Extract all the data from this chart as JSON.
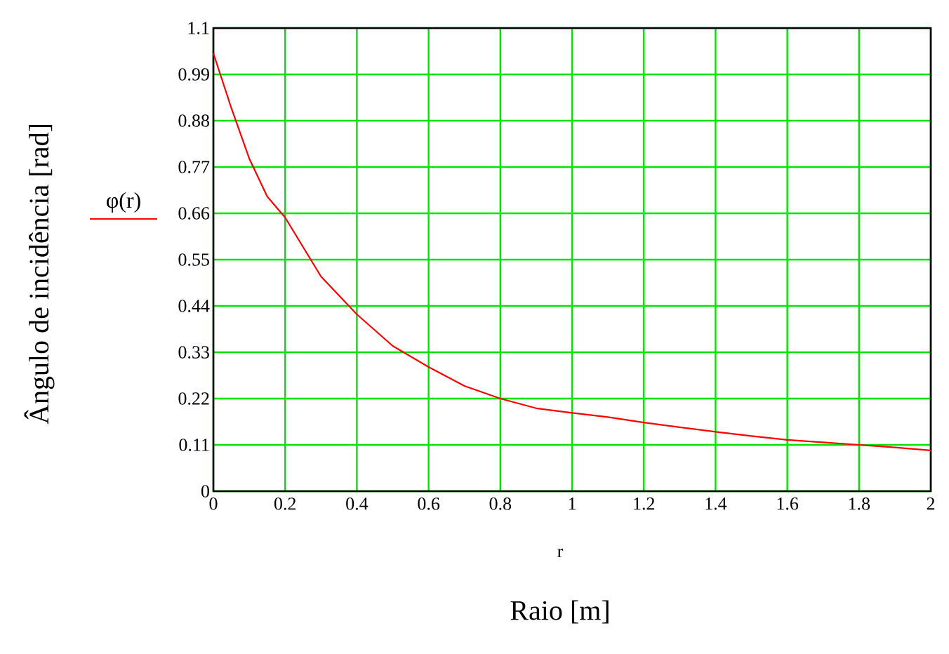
{
  "chart_data": {
    "type": "line",
    "xlabel": "r",
    "ylabel": "Ângulo de incidência [rad]",
    "annotations": [
      "Raio [m]"
    ],
    "series": [
      {
        "name": "φ(r)",
        "color": "#ff0000",
        "x": [
          0,
          0.05,
          0.1,
          0.15,
          0.2,
          0.3,
          0.4,
          0.5,
          0.6,
          0.7,
          0.8,
          0.9,
          1.0,
          1.1,
          1.2,
          1.3,
          1.4,
          1.5,
          1.6,
          1.7,
          1.8,
          1.9,
          2.0
        ],
        "values": [
          1.04,
          0.91,
          0.79,
          0.7,
          0.65,
          0.51,
          0.42,
          0.345,
          0.295,
          0.25,
          0.22,
          0.197,
          0.186,
          0.176,
          0.163,
          0.152,
          0.141,
          0.131,
          0.122,
          0.116,
          0.11,
          0.104,
          0.097
        ]
      }
    ],
    "xlim": [
      0,
      2
    ],
    "ylim": [
      0,
      1.1
    ],
    "xticks": [
      0,
      0.2,
      0.4,
      0.6,
      0.8,
      1,
      1.2,
      1.4,
      1.6,
      1.8,
      2
    ],
    "yticks": [
      0,
      0.11,
      0.22,
      0.33,
      0.44,
      0.55,
      0.66,
      0.77,
      0.88,
      0.99,
      1.1
    ],
    "grid": true,
    "legend": "left",
    "line_style": "solid",
    "marker": "none"
  }
}
